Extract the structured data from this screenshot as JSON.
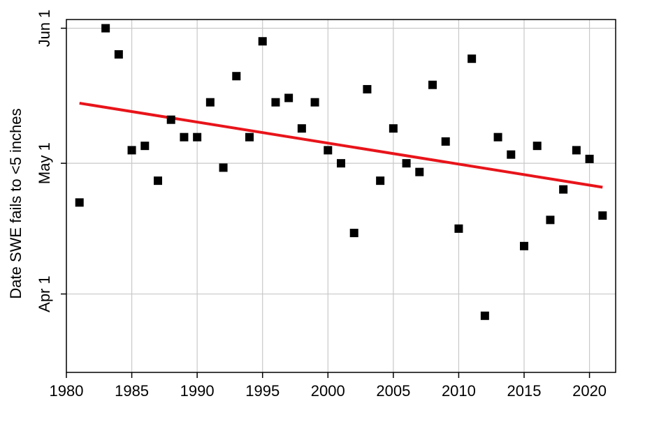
{
  "chart_data": {
    "type": "scatter",
    "title": "",
    "xlabel": "",
    "ylabel": "Date SWE fails to <5 inches",
    "xlim": [
      1980,
      2022
    ],
    "ylim": [
      -18,
      63
    ],
    "x_ticks": [
      1980,
      1985,
      1990,
      1995,
      2000,
      2005,
      2010,
      2015,
      2020
    ],
    "x_tick_labels": [
      "1980",
      "1985",
      "1990",
      "1995",
      "2000",
      "2005",
      "2010",
      "2015",
      "2020"
    ],
    "y_ticks": [
      0,
      30,
      61
    ],
    "y_tick_labels": [
      "Apr 1",
      "May 1",
      "Jun 1"
    ],
    "y_value_units": "days after Apr 1",
    "grid": true,
    "marker": "square",
    "marker_color": "#000000",
    "trend_color": "#e8141a",
    "points": [
      {
        "x": 1981,
        "y": 21
      },
      {
        "x": 1983,
        "y": 61
      },
      {
        "x": 1984,
        "y": 55
      },
      {
        "x": 1985,
        "y": 33
      },
      {
        "x": 1986,
        "y": 34
      },
      {
        "x": 1987,
        "y": 26
      },
      {
        "x": 1988,
        "y": 40
      },
      {
        "x": 1989,
        "y": 36
      },
      {
        "x": 1990,
        "y": 36
      },
      {
        "x": 1991,
        "y": 44
      },
      {
        "x": 1992,
        "y": 29
      },
      {
        "x": 1993,
        "y": 50
      },
      {
        "x": 1994,
        "y": 36
      },
      {
        "x": 1995,
        "y": 58
      },
      {
        "x": 1996,
        "y": 44
      },
      {
        "x": 1997,
        "y": 45
      },
      {
        "x": 1998,
        "y": 38
      },
      {
        "x": 1999,
        "y": 44
      },
      {
        "x": 2000,
        "y": 33
      },
      {
        "x": 2001,
        "y": 30
      },
      {
        "x": 2002,
        "y": 14
      },
      {
        "x": 2003,
        "y": 47
      },
      {
        "x": 2004,
        "y": 26
      },
      {
        "x": 2005,
        "y": 38
      },
      {
        "x": 2006,
        "y": 30
      },
      {
        "x": 2007,
        "y": 28
      },
      {
        "x": 2008,
        "y": 48
      },
      {
        "x": 2009,
        "y": 35
      },
      {
        "x": 2010,
        "y": 15
      },
      {
        "x": 2011,
        "y": 54
      },
      {
        "x": 2012,
        "y": -5
      },
      {
        "x": 2013,
        "y": 36
      },
      {
        "x": 2014,
        "y": 32
      },
      {
        "x": 2015,
        "y": 11
      },
      {
        "x": 2016,
        "y": 34
      },
      {
        "x": 2017,
        "y": 17
      },
      {
        "x": 2018,
        "y": 24
      },
      {
        "x": 2019,
        "y": 33
      },
      {
        "x": 2020,
        "y": 31
      },
      {
        "x": 2021,
        "y": 18
      }
    ],
    "trend_line": {
      "x": [
        1981,
        2021
      ],
      "y": [
        43.8,
        24.5
      ]
    }
  }
}
